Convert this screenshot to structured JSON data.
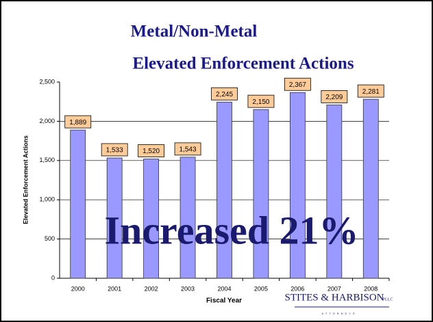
{
  "chart_data": {
    "type": "bar",
    "title": [
      "Metal/Non-Metal",
      "Elevated Enforcement Actions"
    ],
    "categories": [
      "2000",
      "2001",
      "2002",
      "2003",
      "2004",
      "2005",
      "2006",
      "2007",
      "2008"
    ],
    "values": [
      1889,
      1533,
      1520,
      1543,
      2245,
      2150,
      2367,
      2209,
      2281
    ],
    "value_labels": [
      "1,889",
      "1,533",
      "1,520",
      "1,543",
      "2,245",
      "2,150",
      "2,367",
      "2,209",
      "2,281"
    ],
    "color": "#9999ff",
    "label_color": "#ffcc99",
    "ylim": [
      0,
      2500
    ],
    "yticks": [
      0,
      500,
      {
        "value": 1000,
        "label": "1,000"
      },
      {
        "value": 1500,
        "label": "1,500"
      },
      {
        "value": 2000,
        "label": "2,000"
      },
      {
        "value": 2500,
        "label": "2,500"
      }
    ],
    "grid": true,
    "xlabel": "Fiscal Year",
    "ylabel": "Elevated Enforcement Actions",
    "annotation": "Increased 21%",
    "logo": {
      "name": "STITES & HARBISON",
      "suffix": "PLLC",
      "tagline": "ATTORNEYS"
    }
  }
}
